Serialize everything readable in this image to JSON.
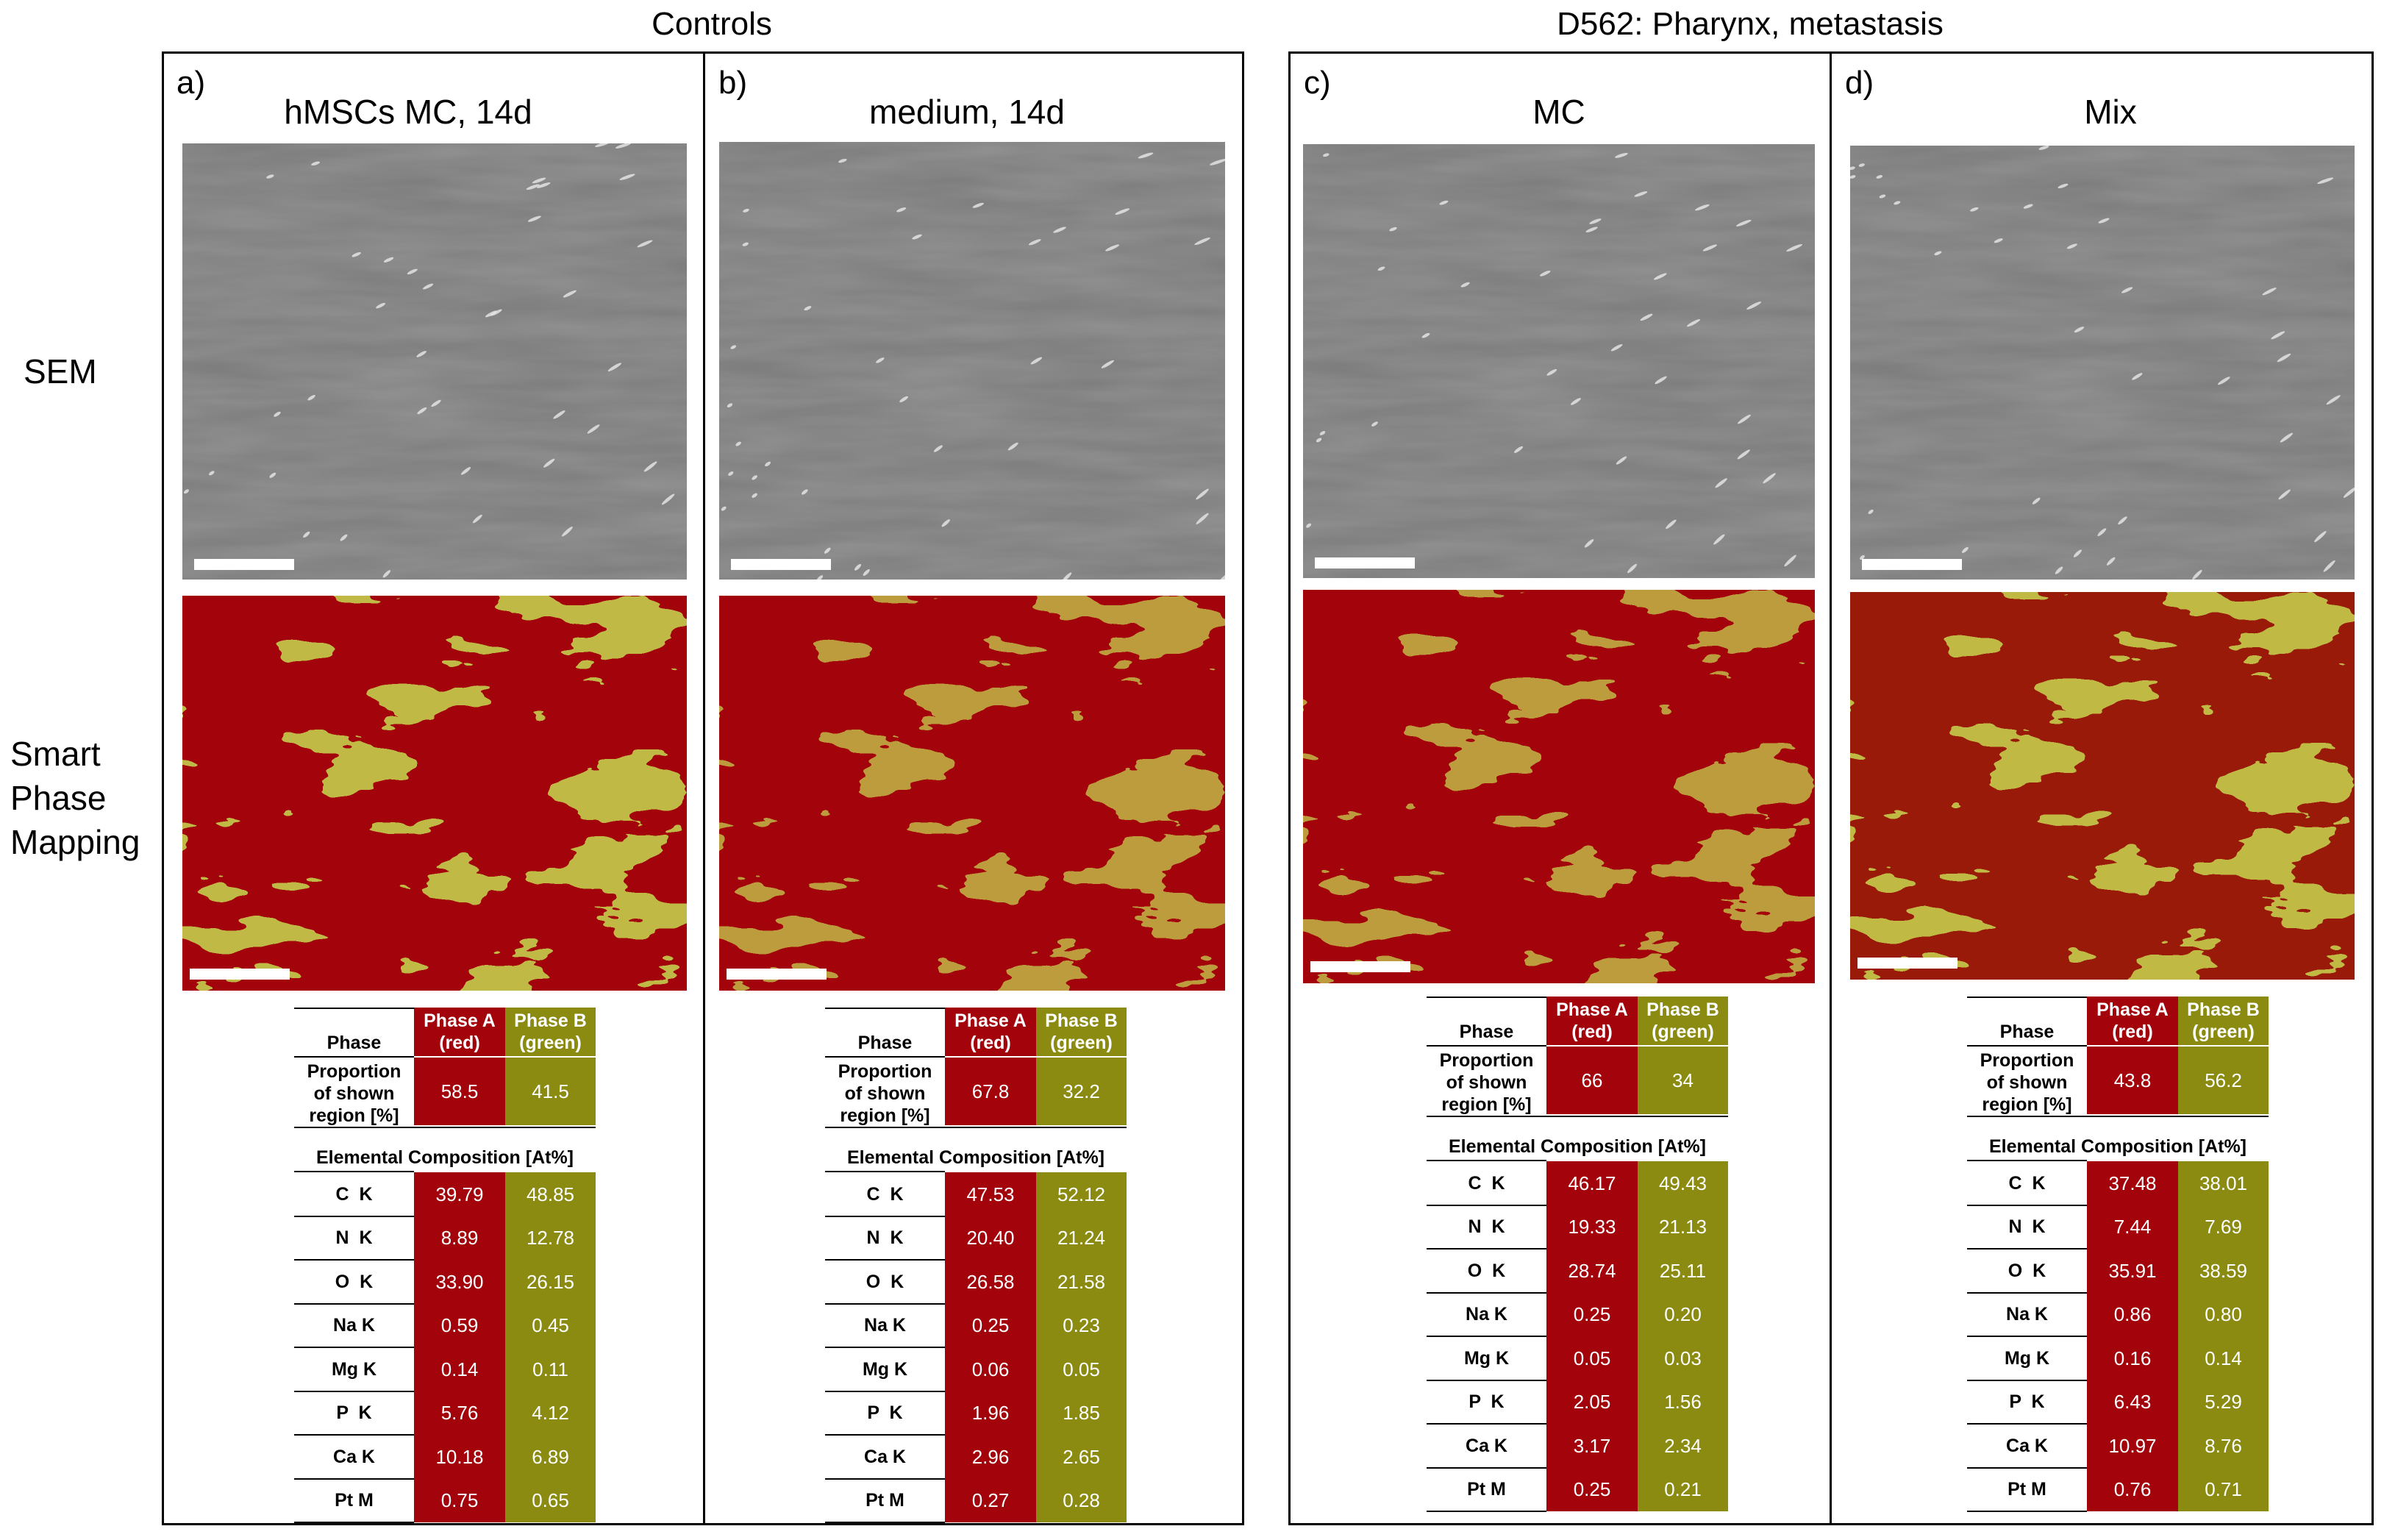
{
  "groups": [
    {
      "title": "Controls"
    },
    {
      "title": "D562: Pharynx, metastasis"
    }
  ],
  "row_labels": {
    "sem": "SEM",
    "mapping": [
      "Smart",
      "Phase",
      "Mapping"
    ]
  },
  "table_labels": {
    "phase": "Phase",
    "phase_a": [
      "Phase A",
      "(red)"
    ],
    "phase_b": [
      "Phase B",
      "(green)"
    ],
    "proportion": [
      "Proportion",
      "of shown",
      "region [%]"
    ],
    "elemental": "Elemental Composition [At%]",
    "elements": [
      "C  K",
      "N  K",
      "O  K",
      "Na K",
      "Mg K",
      "P  K",
      "Ca K",
      "Pt M"
    ]
  },
  "panels": [
    {
      "letter": "a)",
      "title": "hMSCs MC, 14d",
      "proportion": [
        "58.5",
        "41.5"
      ],
      "composition": [
        [
          "39.79",
          "48.85"
        ],
        [
          "8.89",
          "12.78"
        ],
        [
          "33.90",
          "26.15"
        ],
        [
          "0.59",
          "0.45"
        ],
        [
          "0.14",
          "0.11"
        ],
        [
          "5.76",
          "4.12"
        ],
        [
          "10.18",
          "6.89"
        ],
        [
          "0.75",
          "0.65"
        ]
      ]
    },
    {
      "letter": "b)",
      "title": "medium, 14d",
      "proportion": [
        "67.8",
        "32.2"
      ],
      "composition": [
        [
          "47.53",
          "52.12"
        ],
        [
          "20.40",
          "21.24"
        ],
        [
          "26.58",
          "21.58"
        ],
        [
          "0.25",
          "0.23"
        ],
        [
          "0.06",
          "0.05"
        ],
        [
          "1.96",
          "1.85"
        ],
        [
          "2.96",
          "2.65"
        ],
        [
          "0.27",
          "0.28"
        ]
      ]
    },
    {
      "letter": "c)",
      "title": "MC",
      "proportion": [
        "66",
        "34"
      ],
      "composition": [
        [
          "46.17",
          "49.43"
        ],
        [
          "19.33",
          "21.13"
        ],
        [
          "28.74",
          "25.11"
        ],
        [
          "0.25",
          "0.20"
        ],
        [
          "0.05",
          "0.03"
        ],
        [
          "2.05",
          "1.56"
        ],
        [
          "3.17",
          "2.34"
        ],
        [
          "0.25",
          "0.21"
        ]
      ]
    },
    {
      "letter": "d)",
      "title": "Mix",
      "proportion": [
        "43.8",
        "56.2"
      ],
      "composition": [
        [
          "37.48",
          "38.01"
        ],
        [
          "7.44",
          "7.69"
        ],
        [
          "35.91",
          "38.59"
        ],
        [
          "0.86",
          "0.80"
        ],
        [
          "0.16",
          "0.14"
        ],
        [
          "6.43",
          "5.29"
        ],
        [
          "10.97",
          "8.76"
        ],
        [
          "0.76",
          "0.71"
        ]
      ]
    }
  ],
  "colors": {
    "phase_a": "#a3030a",
    "phase_b": "#8b8b11"
  }
}
